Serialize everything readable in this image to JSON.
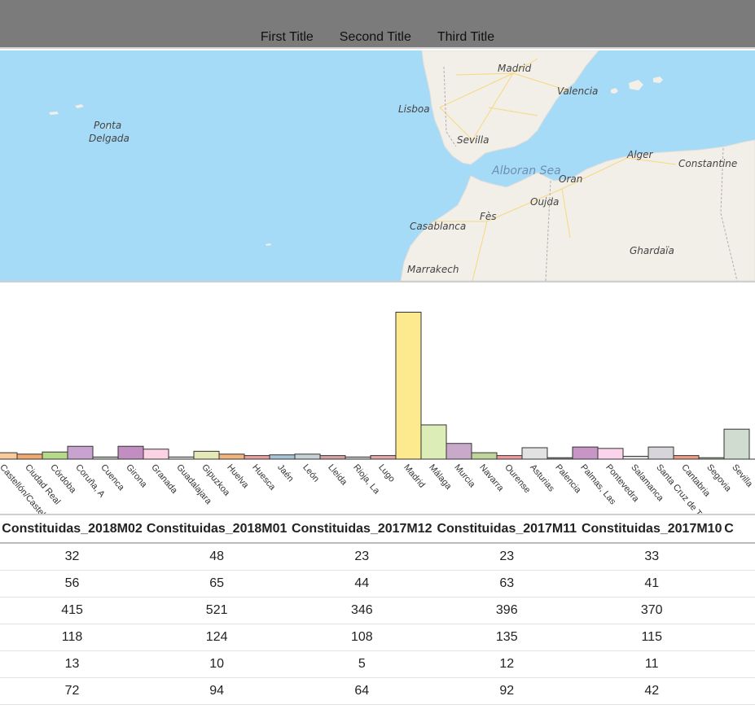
{
  "nav": {
    "tabs": [
      "First Title",
      "Second Title",
      "Third Title"
    ]
  },
  "map": {
    "labels": {
      "madrid": "Madrid",
      "valencia": "Valencia",
      "lisboa": "Lisboa",
      "sevilla": "Sevilla",
      "ponta_delgada_1": "Ponta",
      "ponta_delgada_2": "Delgada",
      "alboran_sea": "Alboran Sea",
      "alger": "Alger",
      "constantine": "Constantine",
      "oran": "Oran",
      "oujda": "Oujda",
      "fes": "Fès",
      "casablanca": "Casablanca",
      "ghardaia": "Ghardaïa",
      "marrakech": "Marrakech"
    },
    "colors": {
      "sea": "#a6dbf7",
      "land": "#f2efe9",
      "roads": "#f7d77f"
    }
  },
  "chart_data": {
    "type": "bar",
    "categories": [
      "Castellón/Castelló",
      "Ciudad Real",
      "Córdoba",
      "Coruña, A",
      "Cuenca",
      "Girona",
      "Granada",
      "Guadalajara",
      "Gipuzkoa",
      "Huelva",
      "Huesca",
      "Jaén",
      "León",
      "Lleida",
      "Rioja, La",
      "Lugo",
      "Madrid",
      "Málaga",
      "Murcia",
      "Navarra",
      "Ourense",
      "Asturias",
      "Palencia",
      "Palmas, Las",
      "Pontevedra",
      "Salamanca",
      "Santa Cruz de Tenerife",
      "Cantabria",
      "Segovia",
      "Sevilla"
    ],
    "values": [
      9,
      7,
      10,
      18,
      3,
      18,
      14,
      3,
      11,
      7,
      5,
      6,
      7,
      5,
      3,
      5,
      206,
      48,
      22,
      9,
      5,
      16,
      2,
      17,
      15,
      4,
      17,
      5,
      2,
      42
    ],
    "colors": [
      "#f9cb9c",
      "#f0a96f",
      "#b6d98a",
      "#c9a3cf",
      "#cccccc",
      "#c28ec2",
      "#fbd3e3",
      "#dddddd",
      "#e4e8b7",
      "#f0b47d",
      "#e8a0a0",
      "#a9c3d6",
      "#c7d2d6",
      "#d6a3a3",
      "#d2d2d2",
      "#e6a8a8",
      "#fde98e",
      "#dcedb8",
      "#c9a9c9",
      "#bfd69b",
      "#ef9a9a",
      "#e2e2e2",
      "#9a9a9a",
      "#c796c7",
      "#fbd3ea",
      "#e0e0e0",
      "#d7d4da",
      "#ed9d85",
      "#b7cfa6",
      "#cfdccf"
    ],
    "ylim": [
      0,
      210
    ]
  },
  "table": {
    "headers": [
      "Constituidas_2018M02",
      "Constituidas_2018M01",
      "Constituidas_2017M12",
      "Constituidas_2017M11",
      "Constituidas_2017M10",
      "C"
    ],
    "rows": [
      [
        "32",
        "48",
        "23",
        "23",
        "33",
        ""
      ],
      [
        "56",
        "65",
        "44",
        "63",
        "41",
        ""
      ],
      [
        "415",
        "521",
        "346",
        "396",
        "370",
        ""
      ],
      [
        "118",
        "124",
        "108",
        "135",
        "115",
        ""
      ],
      [
        "13",
        "10",
        "5",
        "12",
        "11",
        ""
      ],
      [
        "72",
        "94",
        "64",
        "92",
        "42",
        ""
      ]
    ]
  }
}
